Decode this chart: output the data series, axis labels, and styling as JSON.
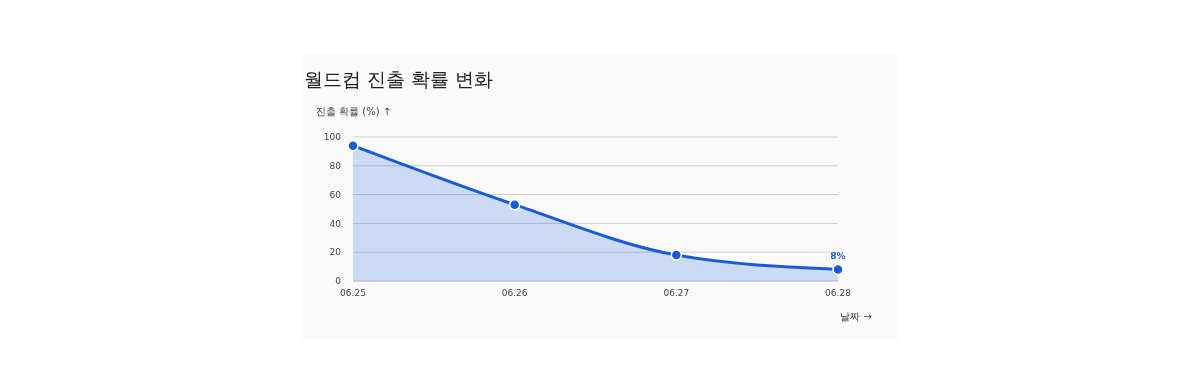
{
  "chart_data": {
    "type": "area",
    "title": "월드컵 진출 확률 변화",
    "ylabel": "진출 확률 (%) ↑",
    "xlabel": "날짜 →",
    "categories": [
      "06.25",
      "06.26",
      "06.27",
      "06.28"
    ],
    "series": [
      {
        "color": "#1a5cd8",
        "values": [
          94,
          53,
          18,
          8
        ],
        "value_labels": [
          null,
          null,
          null,
          "8%"
        ]
      }
    ],
    "ylim": [
      0,
      100
    ],
    "yticks": [
      0,
      20,
      40,
      60,
      80,
      100
    ],
    "grid": "y",
    "marker": "circle",
    "line_style": "solid"
  }
}
